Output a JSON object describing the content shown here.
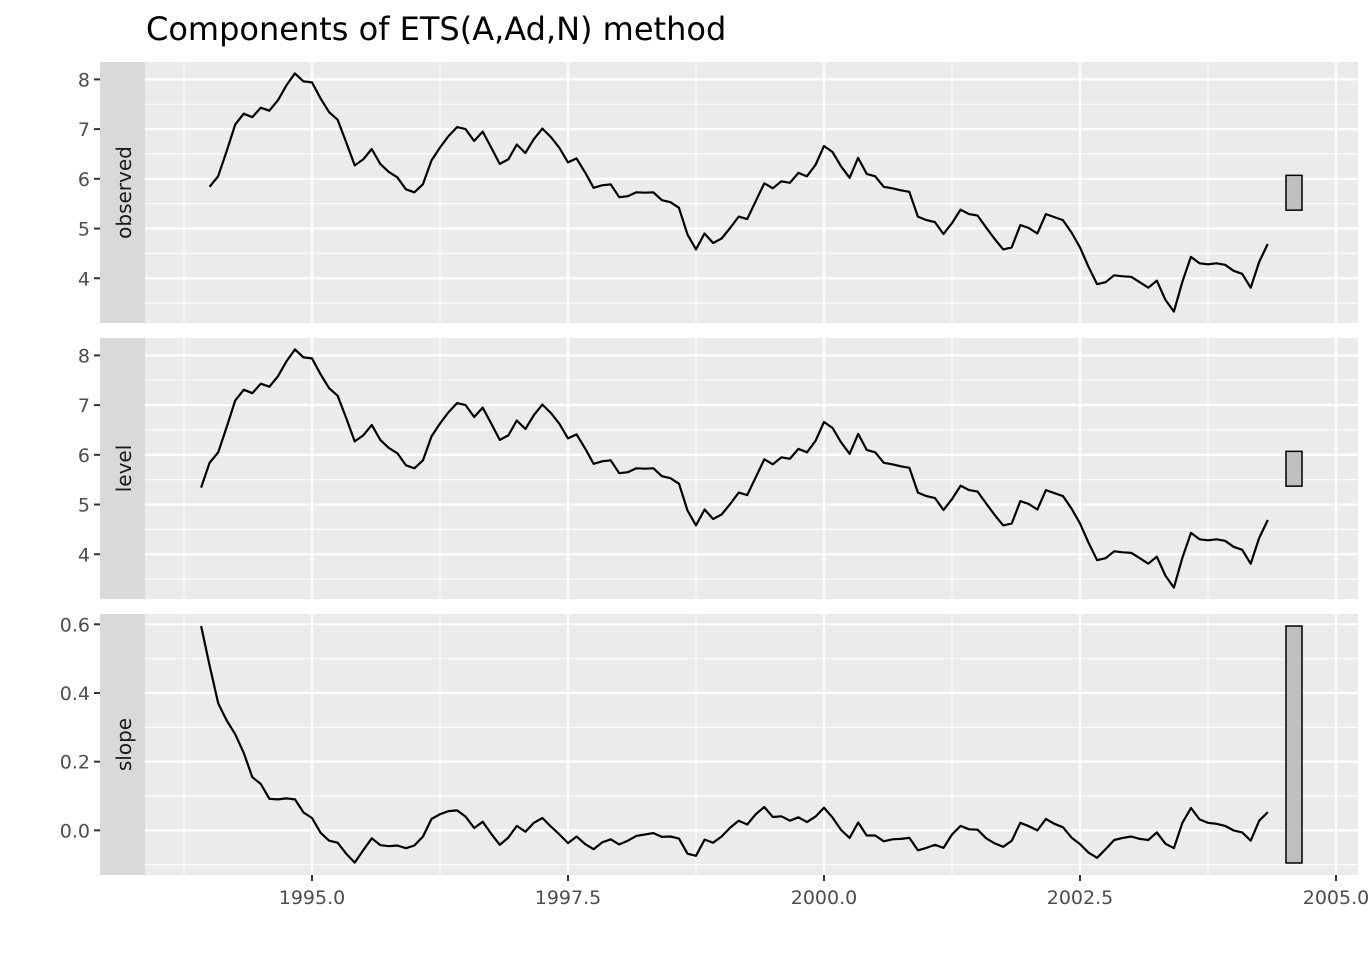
{
  "chart_data": {
    "type": "line",
    "title": "Components of ETS(A,Ad,N) method",
    "xlabel": "",
    "ylabel": "",
    "x_ticks": [
      "1995.0",
      "1997.5",
      "2000.0",
      "2002.5",
      "2005.0"
    ],
    "x_tick_values": [
      1995.0,
      1997.5,
      2000.0,
      2002.5,
      2005.0
    ],
    "xlim": [
      1993.3,
      2005.2
    ],
    "grid": true,
    "legend": "none",
    "colors": {
      "panel_bg": "#ebebeb",
      "strip_bg": "#d9d9d9",
      "grid": "#ffffff",
      "line": "#000000",
      "scale_bar": "#bfbfbf"
    },
    "panels": [
      {
        "name": "observed",
        "ylim": [
          3.1,
          8.35
        ],
        "y_ticks": [
          "4",
          "5",
          "6",
          "7",
          "8"
        ],
        "y_tick_values": [
          4,
          5,
          6,
          7,
          8
        ],
        "scale_bar": [
          5.37,
          6.07
        ],
        "start": 1994.0,
        "frequency": 12,
        "values": [
          5.84,
          6.05,
          6.56,
          7.09,
          7.31,
          7.24,
          7.43,
          7.37,
          7.58,
          7.88,
          8.12,
          7.96,
          7.94,
          7.62,
          7.34,
          7.19,
          6.74,
          6.27,
          6.39,
          6.6,
          6.3,
          6.14,
          6.03,
          5.79,
          5.73,
          5.89,
          6.37,
          6.63,
          6.86,
          7.04,
          7.0,
          6.76,
          6.95,
          6.63,
          6.3,
          6.39,
          6.69,
          6.52,
          6.8,
          7.01,
          6.84,
          6.62,
          6.33,
          6.41,
          6.13,
          5.82,
          5.87,
          5.89,
          5.63,
          5.65,
          5.73,
          5.72,
          5.73,
          5.57,
          5.53,
          5.42,
          4.88,
          4.58,
          4.9,
          4.71,
          4.8,
          5.01,
          5.24,
          5.19,
          5.55,
          5.91,
          5.81,
          5.95,
          5.92,
          6.12,
          6.05,
          6.28,
          6.66,
          6.54,
          6.25,
          6.02,
          6.42,
          6.1,
          6.05,
          5.84,
          5.81,
          5.77,
          5.74,
          5.24,
          5.17,
          5.13,
          4.89,
          5.11,
          5.38,
          5.29,
          5.26,
          5.02,
          4.79,
          4.58,
          4.62,
          5.07,
          5.01,
          4.9,
          5.29,
          5.23,
          5.17,
          4.92,
          4.62,
          4.23,
          3.88,
          3.92,
          4.06,
          4.04,
          4.03,
          3.92,
          3.81,
          3.95,
          3.57,
          3.33,
          3.93,
          4.43,
          4.3,
          4.28,
          4.3,
          4.27,
          4.15,
          4.09,
          3.81,
          4.33,
          4.69
        ]
      },
      {
        "name": "level",
        "ylim": [
          3.1,
          8.35
        ],
        "y_ticks": [
          "4",
          "5",
          "6",
          "7",
          "8"
        ],
        "y_tick_values": [
          4,
          5,
          6,
          7,
          8
        ],
        "scale_bar": [
          5.37,
          6.07
        ],
        "start": 1993.917,
        "frequency": 12,
        "values": [
          5.34,
          5.84,
          6.05,
          6.56,
          7.09,
          7.31,
          7.24,
          7.43,
          7.37,
          7.58,
          7.88,
          8.12,
          7.96,
          7.94,
          7.62,
          7.34,
          7.19,
          6.74,
          6.27,
          6.39,
          6.6,
          6.3,
          6.14,
          6.03,
          5.79,
          5.73,
          5.89,
          6.37,
          6.63,
          6.86,
          7.04,
          7.0,
          6.76,
          6.95,
          6.63,
          6.3,
          6.39,
          6.69,
          6.52,
          6.8,
          7.01,
          6.84,
          6.62,
          6.33,
          6.41,
          6.13,
          5.82,
          5.87,
          5.89,
          5.63,
          5.65,
          5.73,
          5.72,
          5.73,
          5.57,
          5.53,
          5.42,
          4.88,
          4.58,
          4.9,
          4.71,
          4.8,
          5.01,
          5.24,
          5.19,
          5.55,
          5.91,
          5.81,
          5.95,
          5.92,
          6.12,
          6.05,
          6.28,
          6.66,
          6.54,
          6.25,
          6.02,
          6.42,
          6.1,
          6.05,
          5.84,
          5.81,
          5.77,
          5.74,
          5.24,
          5.17,
          5.13,
          4.89,
          5.11,
          5.38,
          5.29,
          5.26,
          5.02,
          4.79,
          4.58,
          4.62,
          5.07,
          5.01,
          4.9,
          5.29,
          5.23,
          5.17,
          4.92,
          4.62,
          4.23,
          3.88,
          3.92,
          4.06,
          4.04,
          4.03,
          3.92,
          3.81,
          3.95,
          3.57,
          3.33,
          3.93,
          4.43,
          4.3,
          4.28,
          4.3,
          4.27,
          4.15,
          4.09,
          3.81,
          4.33,
          4.69
        ]
      },
      {
        "name": "slope",
        "ylim": [
          -0.13,
          0.63
        ],
        "y_ticks": [
          "0.0",
          "0.2",
          "0.4",
          "0.6"
        ],
        "y_tick_values": [
          0.0,
          0.2,
          0.4,
          0.6
        ],
        "scale_bar": [
          -0.095,
          0.595
        ],
        "start": 1993.917,
        "frequency": 12,
        "values": [
          0.595,
          0.48,
          0.37,
          0.32,
          0.28,
          0.225,
          0.155,
          0.135,
          0.092,
          0.09,
          0.093,
          0.09,
          0.052,
          0.036,
          -0.007,
          -0.03,
          -0.036,
          -0.068,
          -0.094,
          -0.058,
          -0.023,
          -0.043,
          -0.046,
          -0.044,
          -0.052,
          -0.044,
          -0.018,
          0.033,
          0.047,
          0.056,
          0.058,
          0.04,
          0.007,
          0.025,
          -0.01,
          -0.042,
          -0.021,
          0.013,
          -0.004,
          0.022,
          0.036,
          0.011,
          -0.012,
          -0.037,
          -0.018,
          -0.04,
          -0.055,
          -0.035,
          -0.026,
          -0.041,
          -0.03,
          -0.016,
          -0.012,
          -0.008,
          -0.019,
          -0.018,
          -0.024,
          -0.068,
          -0.074,
          -0.027,
          -0.036,
          -0.018,
          0.008,
          0.028,
          0.017,
          0.047,
          0.068,
          0.039,
          0.041,
          0.028,
          0.038,
          0.024,
          0.04,
          0.066,
          0.037,
          0.001,
          -0.022,
          0.023,
          -0.015,
          -0.015,
          -0.032,
          -0.026,
          -0.025,
          -0.022,
          -0.058,
          -0.051,
          -0.042,
          -0.051,
          -0.012,
          0.013,
          0.003,
          0.002,
          -0.023,
          -0.038,
          -0.048,
          -0.03,
          0.022,
          0.012,
          0.0,
          0.033,
          0.019,
          0.009,
          -0.021,
          -0.04,
          -0.065,
          -0.08,
          -0.055,
          -0.028,
          -0.022,
          -0.018,
          -0.025,
          -0.028,
          -0.006,
          -0.039,
          -0.052,
          0.022,
          0.065,
          0.032,
          0.022,
          0.019,
          0.013,
          0.0,
          -0.006,
          -0.03,
          0.028,
          0.053
        ]
      }
    ]
  }
}
